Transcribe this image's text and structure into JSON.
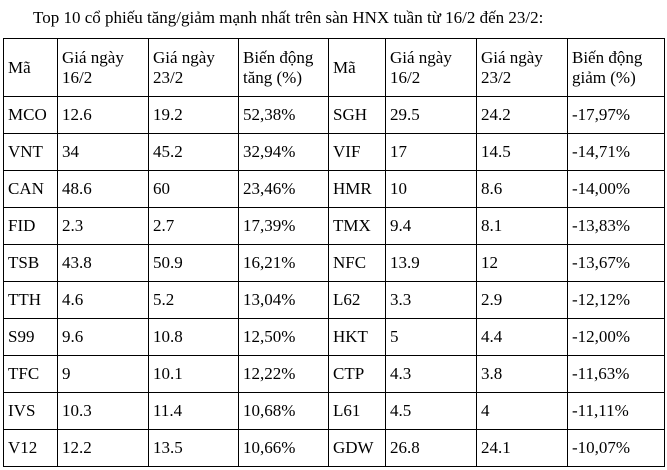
{
  "title": "Top 10 cổ phiếu tăng/giảm mạnh nhất trên sàn HNX tuần từ 16/2 đến 23/2:",
  "table": {
    "headers": [
      "Mã",
      "Giá ngày 16/2",
      "Giá ngày 23/2",
      "Biến động tăng (%)",
      "Mã",
      "Giá ngày 16/2",
      "Giá ngày 23/2",
      "Biến động giảm (%)"
    ],
    "rows": [
      [
        "MCO",
        "12.6",
        "19.2",
        "52,38%",
        "SGH",
        "29.5",
        "24.2",
        "-17,97%"
      ],
      [
        "VNT",
        "34",
        "45.2",
        "32,94%",
        "VIF",
        "17",
        "14.5",
        "-14,71%"
      ],
      [
        "CAN",
        "48.6",
        "60",
        "23,46%",
        "HMR",
        "10",
        "8.6",
        "-14,00%"
      ],
      [
        "FID",
        "2.3",
        "2.7",
        "17,39%",
        "TMX",
        "9.4",
        "8.1",
        "-13,83%"
      ],
      [
        "TSB",
        "43.8",
        "50.9",
        "16,21%",
        "NFC",
        "13.9",
        "12",
        "-13,67%"
      ],
      [
        "TTH",
        "4.6",
        "5.2",
        "13,04%",
        "L62",
        "3.3",
        "2.9",
        "-12,12%"
      ],
      [
        "S99",
        "9.6",
        "10.8",
        "12,50%",
        "HKT",
        "5",
        "4.4",
        "-12,00%"
      ],
      [
        "TFC",
        "9",
        "10.1",
        "12,22%",
        "CTP",
        "4.3",
        "3.8",
        "-11,63%"
      ],
      [
        "IVS",
        "10.3",
        "11.4",
        "10,68%",
        "L61",
        "4.5",
        "4",
        "-11,11%"
      ],
      [
        "V12",
        "12.2",
        "13.5",
        "10,66%",
        "GDW",
        "26.8",
        "24.1",
        "-10,07%"
      ]
    ]
  }
}
